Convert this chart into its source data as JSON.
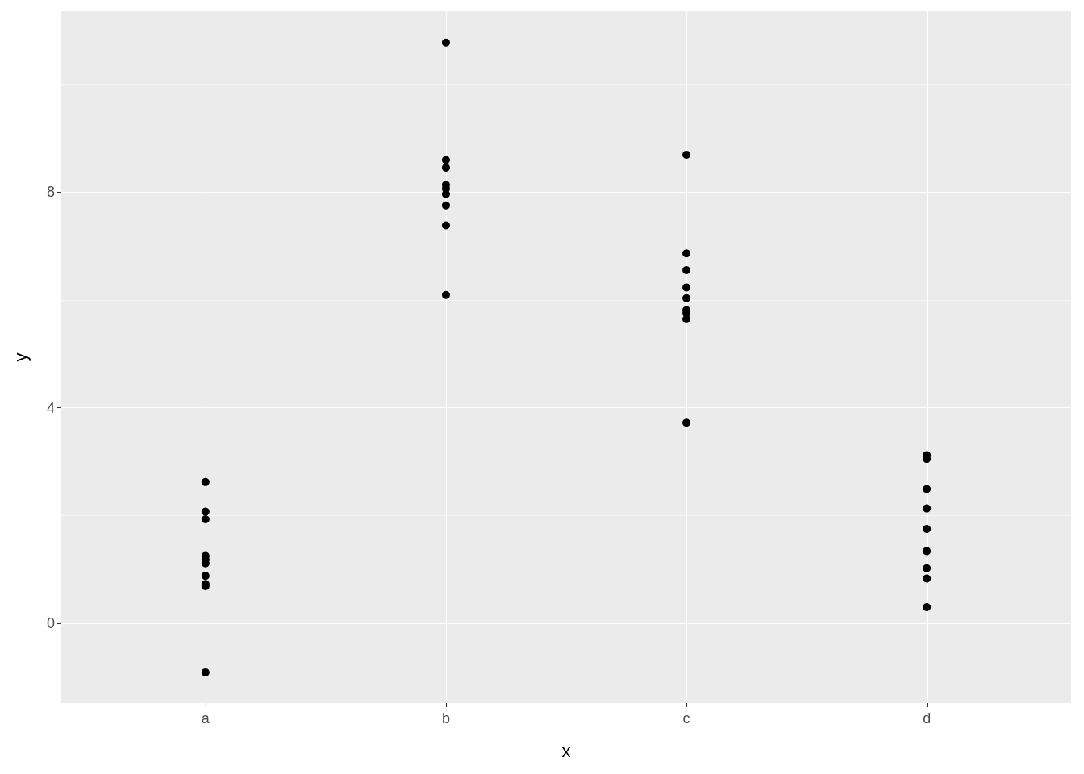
{
  "chart_data": {
    "type": "scatter",
    "xlabel": "x",
    "ylabel": "y",
    "categories": [
      "a",
      "b",
      "c",
      "d"
    ],
    "series": [
      {
        "color": "#000000",
        "x": [
          "a",
          "a",
          "a",
          "a",
          "a",
          "a",
          "a",
          "a",
          "a",
          "a",
          "b",
          "b",
          "b",
          "b",
          "b",
          "b",
          "b",
          "b",
          "b",
          "c",
          "c",
          "c",
          "c",
          "c",
          "c",
          "c",
          "c",
          "c",
          "d",
          "d",
          "d",
          "d",
          "d",
          "d",
          "d",
          "d",
          "d"
        ],
        "values": [
          2.62,
          2.07,
          1.93,
          1.25,
          1.18,
          1.11,
          0.88,
          0.73,
          0.69,
          -0.91,
          10.77,
          8.59,
          8.45,
          8.13,
          8.06,
          7.96,
          7.75,
          7.38,
          6.09,
          8.69,
          6.86,
          6.55,
          6.23,
          6.03,
          5.81,
          5.75,
          5.64,
          3.72,
          3.12,
          3.05,
          2.49,
          2.13,
          1.75,
          1.34,
          1.02,
          0.83,
          0.3
        ]
      }
    ],
    "ylim": [
      -1.48,
      11.35
    ],
    "yticks": [
      0,
      4,
      8
    ],
    "grid": true,
    "marker": "circle"
  }
}
